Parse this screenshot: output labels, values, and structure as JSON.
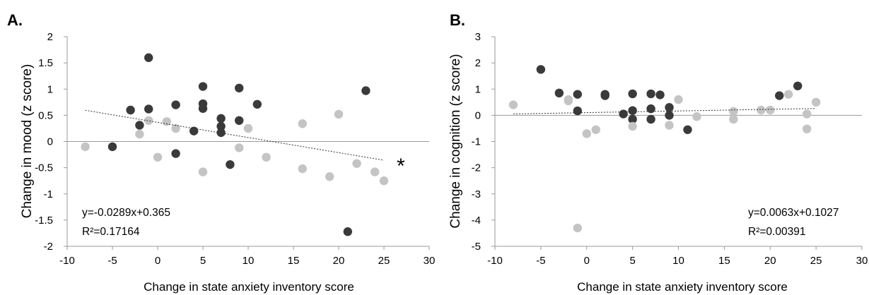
{
  "colors": {
    "dark": "#3a3a3a",
    "light": "#c4c4c4",
    "axis": "#9a9a9a",
    "trend": "#333333"
  },
  "chart_data": [
    {
      "type": "scatter",
      "panel": "A.",
      "xlabel": "Change in state anxiety inventory score",
      "ylabel": "Change in mood (z score)",
      "xlim": [
        -10,
        30
      ],
      "ylim": [
        -2,
        2
      ],
      "x_ticks": [
        -10,
        -5,
        0,
        5,
        10,
        15,
        20,
        25,
        30
      ],
      "y_ticks": [
        -2,
        -1.5,
        -1,
        -0.5,
        0,
        0.5,
        1,
        1.5,
        2
      ],
      "x_tick_labels": [
        "-10",
        "-5",
        "0",
        "5",
        "10",
        "15",
        "20",
        "25",
        "30"
      ],
      "y_tick_labels": [
        "-2",
        "-1.5",
        "-1",
        "-0.5",
        "0",
        "0.5",
        "1",
        "1.5",
        "2"
      ],
      "grid": false,
      "trendline": {
        "slope": -0.0289,
        "intercept": 0.365,
        "x_range": [
          -8,
          25
        ]
      },
      "equation": "y=-0.0289x+0.365",
      "r_squared_label": "R²=0.17164",
      "significance": "*",
      "series": [
        {
          "color": "dark",
          "points": [
            [
              -1,
              1.6
            ],
            [
              5,
              1.05
            ],
            [
              9,
              1.02
            ],
            [
              23,
              0.97
            ],
            [
              11,
              0.71
            ],
            [
              5,
              0.72
            ],
            [
              2,
              0.7
            ],
            [
              -1,
              0.62
            ],
            [
              -3,
              0.6
            ],
            [
              5,
              0.63
            ],
            [
              7,
              0.44
            ],
            [
              9,
              0.4
            ],
            [
              -2,
              0.31
            ],
            [
              7,
              0.29
            ],
            [
              4,
              0.2
            ],
            [
              7,
              0.17
            ],
            [
              -5,
              -0.1
            ],
            [
              2,
              -0.23
            ],
            [
              8,
              -0.44
            ],
            [
              21,
              -1.72
            ]
          ]
        },
        {
          "color": "light",
          "points": [
            [
              -8,
              -0.1
            ],
            [
              -2,
              0.14
            ],
            [
              -1,
              0.4
            ],
            [
              1,
              0.38
            ],
            [
              2,
              0.25
            ],
            [
              0,
              -0.3
            ],
            [
              5,
              -0.58
            ],
            [
              10,
              0.25
            ],
            [
              9,
              -0.12
            ],
            [
              12,
              -0.3
            ],
            [
              16,
              0.34
            ],
            [
              16,
              -0.52
            ],
            [
              19,
              -0.67
            ],
            [
              20,
              0.52
            ],
            [
              22,
              -0.42
            ],
            [
              24,
              -0.58
            ],
            [
              25,
              -0.75
            ]
          ]
        }
      ]
    },
    {
      "type": "scatter",
      "panel": "B.",
      "xlabel": "Change in state anxiety inventory score",
      "ylabel": "Change in cognition (z score)",
      "xlim": [
        -10,
        30
      ],
      "ylim": [
        -5,
        3
      ],
      "x_ticks": [
        -10,
        -5,
        0,
        5,
        10,
        15,
        20,
        25,
        30
      ],
      "y_ticks": [
        -5,
        -4,
        -3,
        -2,
        -1,
        0,
        1,
        2,
        3
      ],
      "x_tick_labels": [
        "-10",
        "-5",
        "0",
        "5",
        "10",
        "15",
        "20",
        "25",
        "30"
      ],
      "y_tick_labels": [
        "-5",
        "-4",
        "-3",
        "-2",
        "-1",
        "0",
        "1",
        "2",
        "3"
      ],
      "grid": false,
      "trendline": {
        "slope": 0.0063,
        "intercept": 0.1027,
        "x_range": [
          -8,
          25
        ]
      },
      "equation": "y=0.0063x+0.1027",
      "r_squared_label": "R²=0.00391",
      "series": [
        {
          "color": "dark",
          "points": [
            [
              -5,
              1.75
            ],
            [
              -3,
              0.85
            ],
            [
              -1,
              0.8
            ],
            [
              -1,
              0.17
            ],
            [
              2,
              0.8
            ],
            [
              2,
              0.75
            ],
            [
              5,
              0.82
            ],
            [
              5,
              0.18
            ],
            [
              5,
              -0.15
            ],
            [
              4,
              0.05
            ],
            [
              7,
              0.82
            ],
            [
              7,
              0.25
            ],
            [
              7,
              -0.15
            ],
            [
              8,
              0.78
            ],
            [
              9,
              0.3
            ],
            [
              9,
              0.0
            ],
            [
              11,
              -0.55
            ],
            [
              21,
              0.75
            ],
            [
              23,
              1.12
            ]
          ]
        },
        {
          "color": "light",
          "points": [
            [
              -8,
              0.4
            ],
            [
              -2,
              0.6
            ],
            [
              -2,
              0.55
            ],
            [
              0,
              -0.7
            ],
            [
              1,
              -0.55
            ],
            [
              -1,
              -4.3
            ],
            [
              5,
              -0.42
            ],
            [
              9,
              -0.38
            ],
            [
              10,
              0.6
            ],
            [
              12,
              -0.05
            ],
            [
              16,
              0.15
            ],
            [
              16,
              -0.15
            ],
            [
              19,
              0.2
            ],
            [
              20,
              0.2
            ],
            [
              22,
              0.8
            ],
            [
              24,
              0.05
            ],
            [
              24,
              -0.52
            ],
            [
              25,
              0.5
            ]
          ]
        }
      ]
    }
  ]
}
